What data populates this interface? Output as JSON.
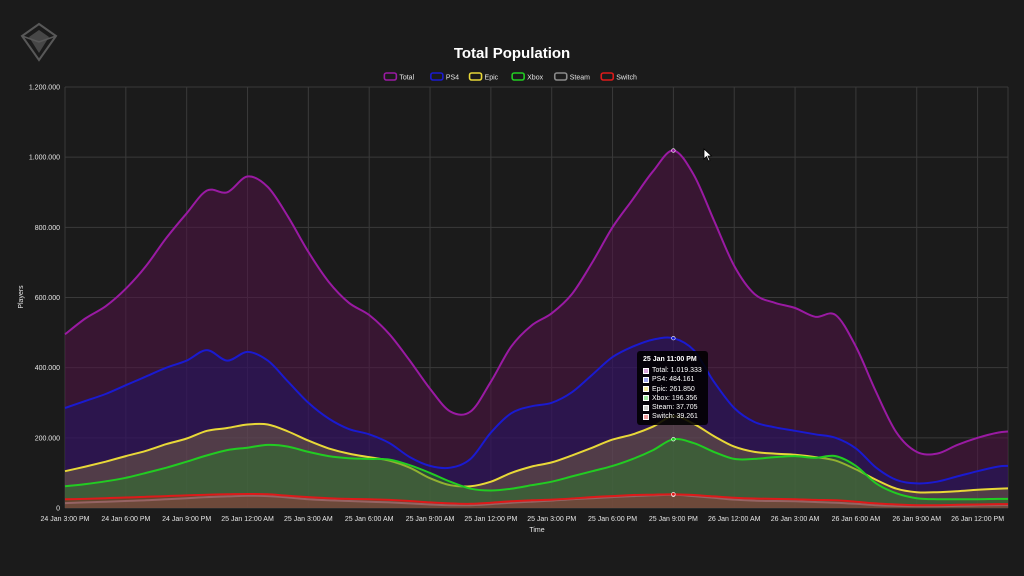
{
  "chart_data": {
    "type": "area",
    "title": "Total Population",
    "xlabel": "Time",
    "ylabel": "Players",
    "ylim": [
      0,
      1200000
    ],
    "y_ticks": [
      0,
      200000,
      400000,
      600000,
      800000,
      1000000,
      1200000
    ],
    "y_tick_labels": [
      "0",
      "200.000",
      "400.000",
      "600.000",
      "800.000",
      "1.000.000",
      "1.200.000"
    ],
    "x_range_hours": [
      0,
      46.5
    ],
    "x_tick_labels": [
      "24 Jan 3:00 PM",
      "24 Jan 6:00 PM",
      "24 Jan 9:00 PM",
      "25 Jan 12:00 AM",
      "25 Jan 3:00 AM",
      "25 Jan 6:00 AM",
      "25 Jan 9:00 AM",
      "25 Jan 12:00 PM",
      "25 Jan 3:00 PM",
      "25 Jan 6:00 PM",
      "25 Jan 9:00 PM",
      "26 Jan 12:00 AM",
      "26 Jan 3:00 AM",
      "26 Jan 6:00 AM",
      "26 Jan 9:00 AM",
      "26 Jan 12:00 PM"
    ],
    "x_tick_hours": [
      0,
      3,
      6,
      9,
      12,
      15,
      18,
      21,
      24,
      27,
      30,
      33,
      36,
      39,
      42,
      45
    ],
    "grid": true,
    "legend_position": "top-center",
    "x_hours": [
      0,
      1,
      2,
      3,
      4,
      5,
      6,
      7,
      8,
      9,
      10,
      11,
      12,
      13,
      14,
      15,
      16,
      17,
      18,
      19,
      20,
      21,
      22,
      23,
      24,
      25,
      26,
      27,
      28,
      29,
      30,
      31,
      32,
      33,
      34,
      35,
      36,
      37,
      38,
      39,
      40,
      41,
      42,
      43,
      44,
      45,
      46,
      46.5
    ],
    "series": [
      {
        "name": "Total",
        "color": "#9a1aa3",
        "fill": "rgba(80,18,70,0.55)",
        "values": [
          495000,
          540000,
          575000,
          625000,
          690000,
          770000,
          840000,
          905000,
          900000,
          945000,
          915000,
          830000,
          730000,
          645000,
          585000,
          550000,
          495000,
          420000,
          340000,
          275000,
          275000,
          360000,
          460000,
          520000,
          555000,
          610000,
          700000,
          800000,
          880000,
          960000,
          1019000,
          950000,
          820000,
          690000,
          610000,
          585000,
          570000,
          545000,
          550000,
          460000,
          330000,
          215000,
          160000,
          155000,
          180000,
          200000,
          215000,
          218000
        ]
      },
      {
        "name": "PS4",
        "color": "#1a1ad0",
        "fill": "rgba(30,20,110,0.45)",
        "values": [
          285000,
          305000,
          325000,
          350000,
          375000,
          400000,
          420000,
          450000,
          420000,
          445000,
          420000,
          360000,
          300000,
          255000,
          225000,
          210000,
          185000,
          145000,
          120000,
          115000,
          140000,
          215000,
          270000,
          290000,
          300000,
          330000,
          380000,
          430000,
          460000,
          480000,
          484000,
          450000,
          360000,
          285000,
          245000,
          230000,
          220000,
          210000,
          200000,
          170000,
          115000,
          80000,
          70000,
          75000,
          90000,
          105000,
          118000,
          120000
        ]
      },
      {
        "name": "Epic",
        "color": "#e8d838",
        "fill": "rgba(190,180,60,0.25)",
        "values": [
          105000,
          118000,
          132000,
          148000,
          163000,
          182000,
          198000,
          220000,
          228000,
          238000,
          238000,
          218000,
          192000,
          170000,
          155000,
          145000,
          135000,
          115000,
          85000,
          65000,
          62000,
          75000,
          100000,
          118000,
          130000,
          150000,
          172000,
          195000,
          210000,
          232000,
          262000,
          240000,
          205000,
          175000,
          160000,
          155000,
          152000,
          145000,
          135000,
          110000,
          80000,
          55000,
          45000,
          45000,
          48000,
          52000,
          55000,
          56000
        ]
      },
      {
        "name": "Xbox",
        "color": "#22cc22",
        "fill": "rgba(40,130,40,0.45)",
        "values": [
          62000,
          68000,
          76000,
          86000,
          100000,
          115000,
          132000,
          150000,
          165000,
          172000,
          180000,
          175000,
          160000,
          148000,
          142000,
          140000,
          138000,
          122000,
          100000,
          75000,
          55000,
          50000,
          55000,
          65000,
          75000,
          90000,
          105000,
          120000,
          140000,
          165000,
          196000,
          185000,
          160000,
          140000,
          140000,
          145000,
          148000,
          143000,
          148000,
          120000,
          70000,
          42000,
          28000,
          25000,
          25000,
          25000,
          26000,
          26000
        ]
      },
      {
        "name": "Steam",
        "color": "#8a8a8a",
        "fill": "rgba(110,110,110,0.35)",
        "values": [
          14000,
          16000,
          18000,
          20000,
          22000,
          25000,
          28000,
          31000,
          33000,
          35000,
          34000,
          30000,
          25000,
          22000,
          20000,
          18000,
          16000,
          13000,
          10000,
          8000,
          8000,
          11000,
          15000,
          18000,
          21000,
          25000,
          28000,
          31000,
          34000,
          36000,
          37700,
          34000,
          29000,
          24000,
          21000,
          20000,
          19000,
          17000,
          15000,
          12000,
          8000,
          6000,
          5000,
          5000,
          6000,
          7000,
          8000,
          8000
        ]
      },
      {
        "name": "Switch",
        "color": "#dd1a1a",
        "fill": "rgba(170,30,30,0.35)",
        "values": [
          25000,
          26000,
          28000,
          30000,
          32000,
          34000,
          36000,
          38000,
          39000,
          40000,
          39000,
          35000,
          31000,
          28000,
          26000,
          25000,
          23000,
          20000,
          16000,
          13000,
          12000,
          15000,
          19000,
          22000,
          24000,
          27000,
          31000,
          34000,
          37000,
          38000,
          39261,
          37000,
          33000,
          29000,
          27000,
          26000,
          25000,
          23000,
          22000,
          18000,
          13000,
          10000,
          8000,
          8000,
          9000,
          10000,
          11000,
          11000
        ]
      }
    ]
  },
  "tooltip": {
    "title": "25 Jan 11:00 PM",
    "rows": [
      {
        "label": "Total: 1.019.333",
        "color": "#d7a6da"
      },
      {
        "label": "PS4: 484.161",
        "color": "#9ea6ee"
      },
      {
        "label": "Epic: 261.850",
        "color": "#f3ec9e"
      },
      {
        "label": "Xbox: 196.356",
        "color": "#9fe89f"
      },
      {
        "label": "Steam: 37.705",
        "color": "#cccccc"
      },
      {
        "label": "Switch: 39.261",
        "color": "#ef9e9e"
      }
    ]
  }
}
